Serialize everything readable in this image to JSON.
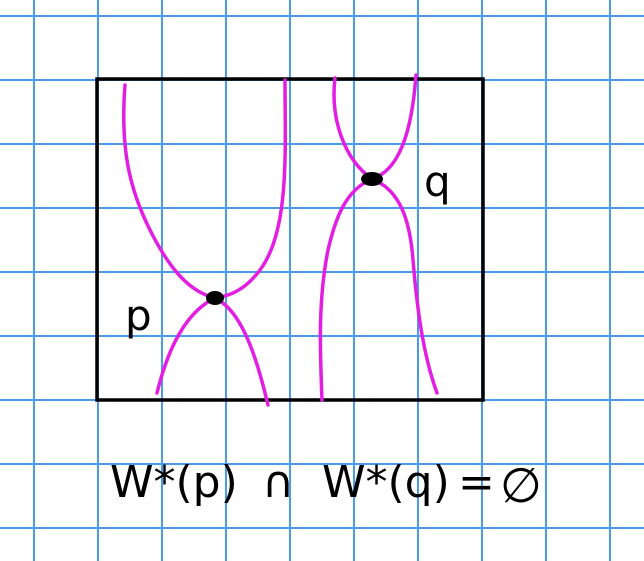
{
  "labels": {
    "p": "p",
    "q": "q"
  },
  "equation": {
    "left": "W*(p)",
    "intersect": "∩",
    "right": "W*(q)",
    "equals": "=",
    "empty": "∅"
  }
}
